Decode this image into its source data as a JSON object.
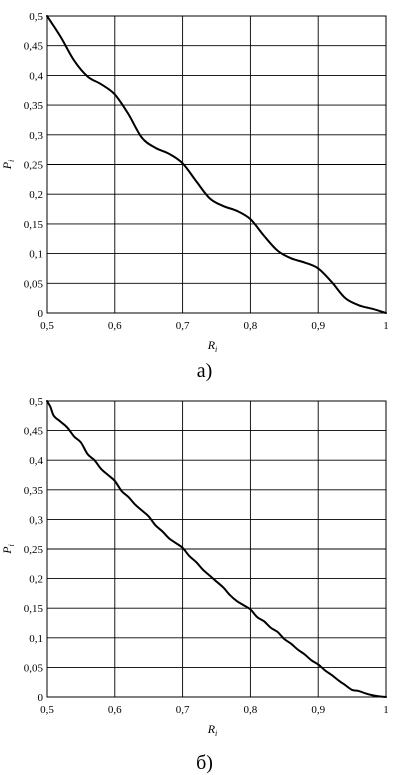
{
  "chart_data": [
    {
      "type": "line",
      "panel_label": "а)",
      "xlabel": "R_i",
      "ylabel": "P_i",
      "xlim": [
        0.5,
        1.0
      ],
      "ylim": [
        0,
        0.5
      ],
      "x_ticks": [
        "0,5",
        "0,6",
        "0,7",
        "0,8",
        "0,9",
        "1"
      ],
      "y_ticks": [
        "0",
        "0,05",
        "0,1",
        "0,15",
        "0,2",
        "0,25",
        "0,3",
        "0,35",
        "0,4",
        "0,45",
        "0,5"
      ],
      "grid": "vertical at every x tick, horizontal every 0.05",
      "series": [
        {
          "x": [
            0.5,
            0.52,
            0.54,
            0.56,
            0.58,
            0.6,
            0.62,
            0.64,
            0.66,
            0.68,
            0.7,
            0.72,
            0.74,
            0.76,
            0.78,
            0.8,
            0.82,
            0.84,
            0.86,
            0.88,
            0.9,
            0.92,
            0.94,
            0.96,
            0.98,
            1.0
          ],
          "y": [
            0.5,
            0.465,
            0.425,
            0.398,
            0.385,
            0.368,
            0.335,
            0.295,
            0.278,
            0.268,
            0.252,
            0.222,
            0.193,
            0.18,
            0.172,
            0.158,
            0.13,
            0.105,
            0.092,
            0.085,
            0.075,
            0.052,
            0.025,
            0.013,
            0.007,
            0.0
          ]
        }
      ]
    },
    {
      "type": "line",
      "panel_label": "б)",
      "xlabel": "R_i",
      "ylabel": "P_i",
      "xlim": [
        0.5,
        1.0
      ],
      "ylim": [
        0,
        0.5
      ],
      "x_ticks": [
        "0,5",
        "0,6",
        "0,7",
        "0,8",
        "0,9",
        "1"
      ],
      "y_ticks": [
        "0",
        "0,05",
        "0,1",
        "0,15",
        "0,2",
        "0,25",
        "0,3",
        "0,35",
        "0,4",
        "0,45",
        "0,5"
      ],
      "grid": "vertical at every x tick, horizontal every 0.05",
      "series": [
        {
          "x": [
            0.5,
            0.505,
            0.51,
            0.52,
            0.53,
            0.54,
            0.55,
            0.56,
            0.57,
            0.58,
            0.59,
            0.6,
            0.61,
            0.62,
            0.63,
            0.64,
            0.65,
            0.66,
            0.67,
            0.68,
            0.69,
            0.7,
            0.71,
            0.72,
            0.73,
            0.74,
            0.75,
            0.76,
            0.77,
            0.78,
            0.79,
            0.8,
            0.81,
            0.82,
            0.83,
            0.84,
            0.85,
            0.86,
            0.87,
            0.88,
            0.89,
            0.9,
            0.91,
            0.92,
            0.93,
            0.94,
            0.95,
            0.96,
            0.97,
            0.98,
            0.99,
            1.0
          ],
          "y": [
            0.5,
            0.49,
            0.475,
            0.465,
            0.455,
            0.44,
            0.43,
            0.41,
            0.4,
            0.385,
            0.375,
            0.365,
            0.348,
            0.338,
            0.325,
            0.315,
            0.305,
            0.29,
            0.28,
            0.268,
            0.26,
            0.252,
            0.238,
            0.228,
            0.215,
            0.205,
            0.195,
            0.185,
            0.172,
            0.162,
            0.155,
            0.148,
            0.135,
            0.128,
            0.117,
            0.11,
            0.098,
            0.09,
            0.08,
            0.072,
            0.062,
            0.055,
            0.045,
            0.037,
            0.028,
            0.02,
            0.012,
            0.01,
            0.006,
            0.003,
            0.001,
            0.0
          ]
        }
      ]
    }
  ]
}
